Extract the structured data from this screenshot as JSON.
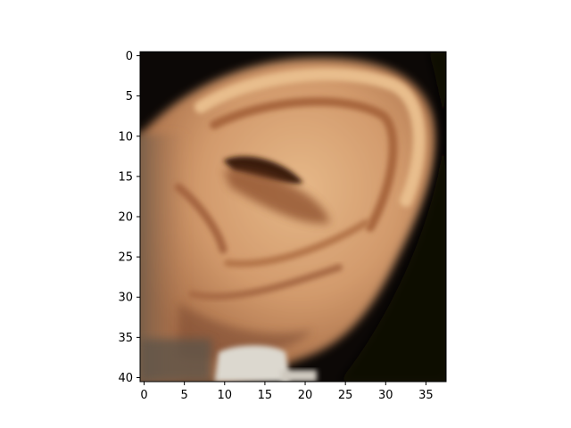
{
  "image": {
    "subject": "ear-photo",
    "colors": {
      "background": "#0c0806",
      "skin_highlight": "#e2b07f",
      "skin_mid": "#cf9468",
      "skin_shadow": "#8a4a2a",
      "cavity": "#3a1a0c",
      "neck_white": "#dcd8cf"
    }
  },
  "axes": {
    "x_ticks": [
      "0",
      "5",
      "10",
      "15",
      "20",
      "25",
      "30",
      "35"
    ],
    "y_ticks": [
      "0",
      "5",
      "10",
      "15",
      "20",
      "25",
      "30",
      "35",
      "40"
    ]
  }
}
